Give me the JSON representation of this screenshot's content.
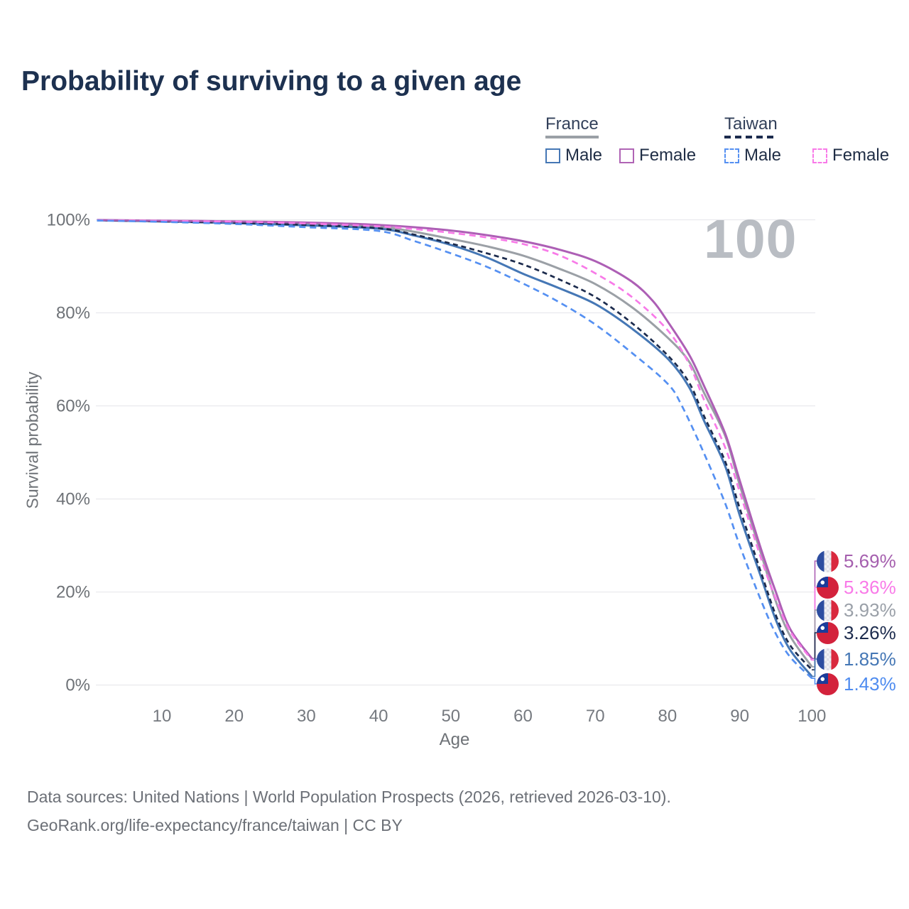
{
  "title": "Probability of surviving to a given age",
  "watermark_age": "100",
  "legend": {
    "groups": [
      {
        "name": "France",
        "line_style": "solid",
        "line_color": "#9aa0a6",
        "items": [
          {
            "label": "Male",
            "swatch_color": "#4577b5",
            "swatch_style": "solid"
          },
          {
            "label": "Female",
            "swatch_color": "#b064b5",
            "swatch_style": "solid"
          }
        ]
      },
      {
        "name": "Taiwan",
        "line_style": "dashed",
        "line_color": "#1c2b4d",
        "items": [
          {
            "label": "Male",
            "swatch_color": "#5590f2",
            "swatch_style": "dashed"
          },
          {
            "label": "Female",
            "swatch_color": "#f87ae8",
            "swatch_style": "dashed"
          }
        ]
      }
    ]
  },
  "axes": {
    "x_title": "Age",
    "y_title": "Survival probability",
    "x_ticks": [
      "10",
      "20",
      "30",
      "40",
      "50",
      "60",
      "70",
      "80",
      "90",
      "100"
    ],
    "y_ticks": [
      "0%",
      "20%",
      "40%",
      "60%",
      "80%",
      "100%"
    ]
  },
  "chart_data": {
    "type": "line",
    "title": "Probability of surviving to a given age",
    "xlabel": "Age",
    "ylabel": "Survival probability",
    "xlim": [
      0,
      100
    ],
    "ylim": [
      0,
      100
    ],
    "grid": "horizontal",
    "legend_position": "top-right",
    "series": [
      {
        "name": "France Female",
        "country": "France",
        "sex": "Female",
        "style": "solid",
        "color": "#ad5fb5",
        "end_label": "5.69%",
        "end_value_pct": 5.69,
        "points": [
          [
            1,
            99.95
          ],
          [
            5,
            99.9
          ],
          [
            10,
            99.8
          ],
          [
            15,
            99.75
          ],
          [
            20,
            99.65
          ],
          [
            25,
            99.55
          ],
          [
            30,
            99.4
          ],
          [
            35,
            99.2
          ],
          [
            40,
            98.9
          ],
          [
            45,
            98.4
          ],
          [
            50,
            97.7
          ],
          [
            55,
            96.7
          ],
          [
            60,
            95.4
          ],
          [
            65,
            93.6
          ],
          [
            70,
            91.1
          ],
          [
            75,
            86.8
          ],
          [
            78,
            82.5
          ],
          [
            80,
            78.2
          ],
          [
            83,
            71
          ],
          [
            85,
            64.5
          ],
          [
            88,
            54
          ],
          [
            90,
            44
          ],
          [
            93,
            29
          ],
          [
            95,
            20
          ],
          [
            97,
            12
          ],
          [
            100,
            5.69
          ]
        ]
      },
      {
        "name": "Taiwan Female",
        "country": "Taiwan",
        "sex": "Female",
        "style": "dashed",
        "color": "#f87ae8",
        "end_label": "5.36%",
        "end_value_pct": 5.36,
        "points": [
          [
            1,
            99.9
          ],
          [
            10,
            99.75
          ],
          [
            20,
            99.6
          ],
          [
            30,
            99.2
          ],
          [
            40,
            98.6
          ],
          [
            45,
            98.0
          ],
          [
            50,
            97.2
          ],
          [
            55,
            96.2
          ],
          [
            60,
            94.8
          ],
          [
            65,
            92.4
          ],
          [
            70,
            88.5
          ],
          [
            75,
            83.5
          ],
          [
            80,
            76.3
          ],
          [
            83,
            69
          ],
          [
            85,
            61.5
          ],
          [
            88,
            51
          ],
          [
            90,
            41.5
          ],
          [
            93,
            27
          ],
          [
            95,
            18.5
          ],
          [
            97,
            11.5
          ],
          [
            100,
            5.36
          ]
        ]
      },
      {
        "name": "France Total",
        "country": "France",
        "sex": "Both",
        "style": "solid",
        "color": "#9ba0a6",
        "end_label": "3.93%",
        "end_value_pct": 3.93,
        "points": [
          [
            1,
            99.9
          ],
          [
            10,
            99.7
          ],
          [
            20,
            99.5
          ],
          [
            30,
            99.1
          ],
          [
            40,
            98.5
          ],
          [
            45,
            97.4
          ],
          [
            50,
            95.9
          ],
          [
            55,
            94.3
          ],
          [
            60,
            92.3
          ],
          [
            65,
            89.5
          ],
          [
            70,
            86.2
          ],
          [
            75,
            81.3
          ],
          [
            80,
            74.7
          ],
          [
            83,
            69.5
          ],
          [
            85,
            63
          ],
          [
            88,
            53.5
          ],
          [
            90,
            43
          ],
          [
            93,
            28
          ],
          [
            95,
            18
          ],
          [
            97,
            10.5
          ],
          [
            100,
            3.93
          ]
        ]
      },
      {
        "name": "Taiwan Total",
        "country": "Taiwan",
        "sex": "Both",
        "style": "dashed",
        "color": "#1c2b4d",
        "end_label": "3.26%",
        "end_value_pct": 3.26,
        "points": [
          [
            1,
            99.9
          ],
          [
            10,
            99.65
          ],
          [
            20,
            99.35
          ],
          [
            30,
            98.9
          ],
          [
            40,
            98.2
          ],
          [
            45,
            96.8
          ],
          [
            50,
            94.9
          ],
          [
            55,
            92.8
          ],
          [
            60,
            90.4
          ],
          [
            65,
            87.2
          ],
          [
            70,
            83.4
          ],
          [
            75,
            77.9
          ],
          [
            80,
            70.9
          ],
          [
            83,
            65
          ],
          [
            85,
            58
          ],
          [
            88,
            48
          ],
          [
            90,
            38
          ],
          [
            93,
            24
          ],
          [
            95,
            15
          ],
          [
            97,
            8.5
          ],
          [
            100,
            3.26
          ]
        ]
      },
      {
        "name": "France Male",
        "country": "France",
        "sex": "Male",
        "style": "solid",
        "color": "#4577b5",
        "end_label": "1.85%",
        "end_value_pct": 1.85,
        "points": [
          [
            1,
            99.9
          ],
          [
            10,
            99.65
          ],
          [
            20,
            99.3
          ],
          [
            30,
            98.8
          ],
          [
            40,
            98.1
          ],
          [
            45,
            96.6
          ],
          [
            50,
            94.6
          ],
          [
            55,
            91.9
          ],
          [
            60,
            88.4
          ],
          [
            65,
            85.3
          ],
          [
            70,
            81.9
          ],
          [
            75,
            76.7
          ],
          [
            80,
            70.2
          ],
          [
            83,
            64
          ],
          [
            85,
            57
          ],
          [
            88,
            47
          ],
          [
            90,
            36.5
          ],
          [
            93,
            23
          ],
          [
            95,
            14
          ],
          [
            97,
            7.5
          ],
          [
            100,
            1.85
          ]
        ]
      },
      {
        "name": "Taiwan Male",
        "country": "Taiwan",
        "sex": "Male",
        "style": "dashed",
        "color": "#5590f2",
        "end_label": "1.43%",
        "end_value_pct": 1.43,
        "points": [
          [
            1,
            99.85
          ],
          [
            10,
            99.55
          ],
          [
            20,
            99.1
          ],
          [
            30,
            98.4
          ],
          [
            40,
            97.6
          ],
          [
            45,
            95.4
          ],
          [
            50,
            92.8
          ],
          [
            55,
            89.9
          ],
          [
            60,
            86.3
          ],
          [
            65,
            82.3
          ],
          [
            70,
            77.5
          ],
          [
            75,
            71.5
          ],
          [
            80,
            64.8
          ],
          [
            82,
            60
          ],
          [
            85,
            50
          ],
          [
            88,
            39
          ],
          [
            90,
            30
          ],
          [
            93,
            18
          ],
          [
            95,
            11
          ],
          [
            97,
            6
          ],
          [
            100,
            1.43
          ]
        ]
      }
    ]
  },
  "end_labels": [
    {
      "value": "5.69%",
      "flag": "france",
      "color": "#a55fae"
    },
    {
      "value": "5.36%",
      "flag": "taiwan",
      "color": "#f97ae8"
    },
    {
      "value": "3.93%",
      "flag": "france",
      "color": "#9aa0a8"
    },
    {
      "value": "3.26%",
      "flag": "taiwan",
      "color": "#1c2b4d"
    },
    {
      "value": "1.85%",
      "flag": "france",
      "color": "#4577b5"
    },
    {
      "value": "1.43%",
      "flag": "taiwan",
      "color": "#4f8cf0"
    }
  ],
  "footer": {
    "line1": "Data sources: United Nations | World Population Prospects (2026, retrieved 2026-03-10).",
    "line2": "GeoRank.org/life-expectancy/france/taiwan | CC BY"
  }
}
